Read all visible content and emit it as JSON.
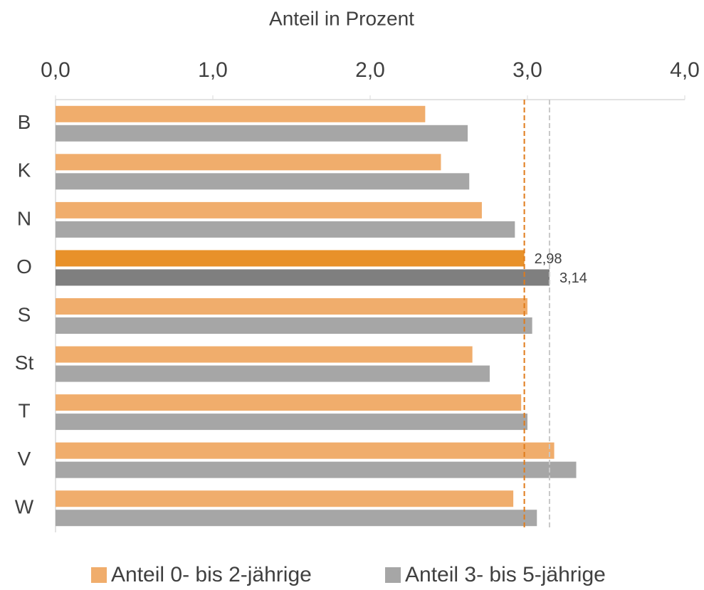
{
  "chart_data": {
    "type": "hbar",
    "xlabel": "Anteil in Prozent",
    "categories": [
      "B",
      "K",
      "N",
      "O",
      "S",
      "St",
      "T",
      "V",
      "W"
    ],
    "series": [
      {
        "name": "Anteil 0- bis 2-jährige",
        "color": "#f0ad6c",
        "highlight_color": "#e8912a",
        "values": [
          2.35,
          2.45,
          2.71,
          2.98,
          3.0,
          2.65,
          2.96,
          3.17,
          2.91
        ],
        "value_labels": [
          null,
          null,
          null,
          "2,98",
          null,
          null,
          null,
          null,
          null
        ]
      },
      {
        "name": "Anteil 3- bis 5-jährige",
        "color": "#a6a6a6",
        "highlight_color": "#7f7f7f",
        "values": [
          2.62,
          2.63,
          2.92,
          3.14,
          3.03,
          2.76,
          3.0,
          3.31,
          3.06
        ],
        "value_labels": [
          null,
          null,
          null,
          "3,14",
          null,
          null,
          null,
          null,
          null
        ]
      }
    ],
    "reference_lines": [
      {
        "value": 2.98,
        "color": "#e07b1a"
      },
      {
        "value": 3.14,
        "color": "#c8c8c8"
      }
    ],
    "xlim": [
      0,
      4
    ],
    "xticks": [
      {
        "value": 0,
        "label": "0,0"
      },
      {
        "value": 1,
        "label": "1,0"
      },
      {
        "value": 2,
        "label": "2,0"
      },
      {
        "value": 3,
        "label": "3,0"
      },
      {
        "value": 4,
        "label": "4,0"
      }
    ],
    "legend": "bottom"
  }
}
